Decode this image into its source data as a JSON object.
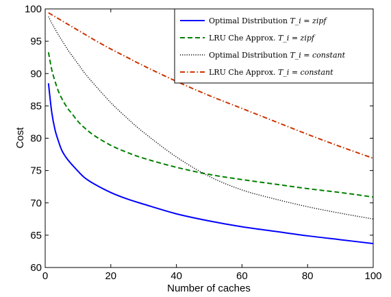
{
  "chart_data": {
    "type": "line",
    "title": "",
    "xlabel": "Number of caches",
    "ylabel": "Cost",
    "xlim": [
      0,
      100
    ],
    "ylim": [
      60,
      100
    ],
    "xticks": [
      "0",
      "20",
      "40",
      "60",
      "80",
      "100"
    ],
    "yticks": [
      "60",
      "65",
      "70",
      "75",
      "80",
      "85",
      "90",
      "95",
      "100"
    ],
    "grid": false,
    "legend_position": "top-right",
    "x": [
      1,
      2,
      3,
      4,
      5,
      6,
      7,
      8,
      10,
      12,
      15,
      20,
      25,
      30,
      40,
      50,
      60,
      70,
      80,
      90,
      100
    ],
    "series": [
      {
        "name_text": "Optimal Distribution ",
        "name_math": "T_i = zipf",
        "color": "#0000ff",
        "style": "solid",
        "values": [
          88.5,
          84.0,
          81.3,
          79.6,
          78.2,
          77.3,
          76.6,
          76.0,
          74.9,
          73.9,
          72.9,
          71.6,
          70.6,
          69.8,
          68.3,
          67.2,
          66.3,
          65.6,
          64.9,
          64.3,
          63.7
        ]
      },
      {
        "name_text": "LRU Che Approx. ",
        "name_math": "T_i = zipf",
        "color": "#008000",
        "style": "dashed",
        "values": [
          93.3,
          90.6,
          88.8,
          87.3,
          86.2,
          85.3,
          84.5,
          83.9,
          82.6,
          81.6,
          80.4,
          78.9,
          77.8,
          76.9,
          75.5,
          74.4,
          73.6,
          72.9,
          72.2,
          71.6,
          70.9
        ]
      },
      {
        "name_text": "Optimal Distribution ",
        "name_math": "T_i = constant",
        "color": "#000000",
        "style": "dotted",
        "values": [
          98.8,
          97.8,
          96.9,
          96.0,
          95.2,
          94.4,
          93.6,
          92.9,
          91.5,
          90.1,
          88.3,
          85.5,
          83.1,
          80.9,
          77.1,
          74.1,
          72.0,
          70.6,
          69.4,
          68.4,
          67.5
        ]
      },
      {
        "name_text": "LRU Che Approx. ",
        "name_math": "T_i = constant",
        "color": "#cc3300",
        "style": "dashdot",
        "values": [
          99.4,
          99.1,
          98.8,
          98.5,
          98.2,
          97.9,
          97.6,
          97.3,
          96.7,
          96.1,
          95.2,
          93.8,
          92.5,
          91.2,
          88.8,
          86.6,
          84.6,
          82.6,
          80.6,
          78.7,
          76.9
        ]
      }
    ]
  }
}
